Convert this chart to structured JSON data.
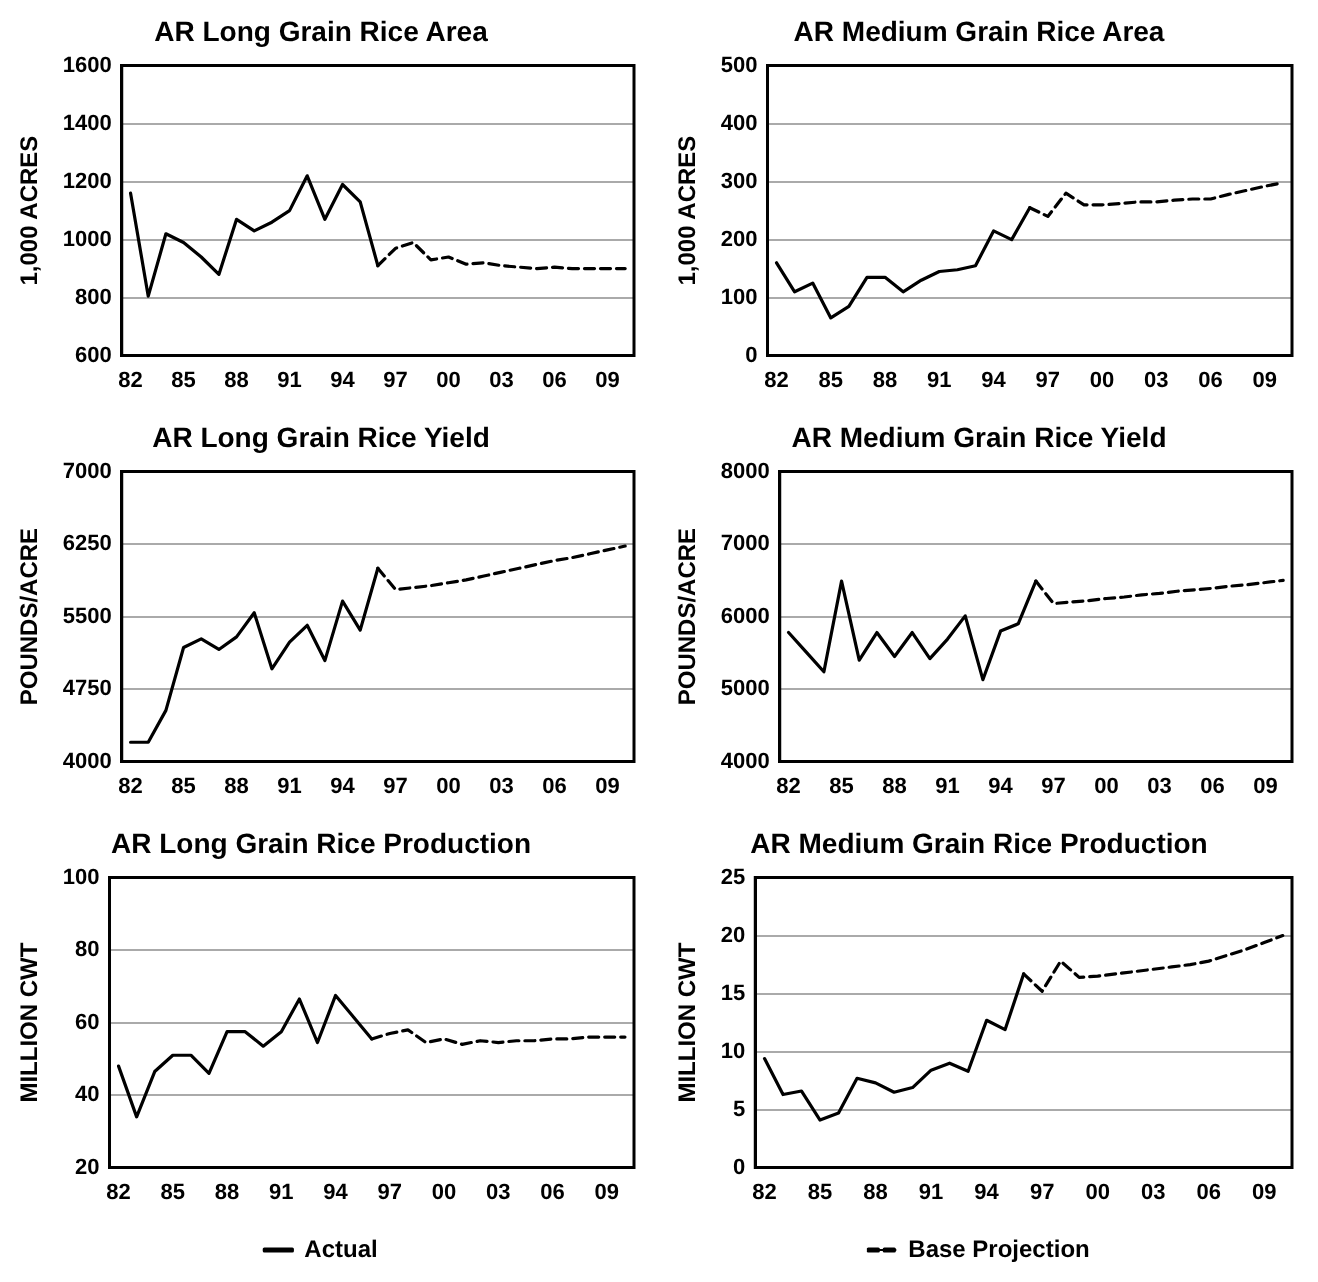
{
  "chart_data": [
    {
      "type": "line",
      "title": "AR Long Grain Rice Area",
      "ylabel": "1,000 ACRES",
      "categories": [
        "82",
        null,
        null,
        "85",
        null,
        null,
        "88",
        null,
        null,
        "91",
        null,
        null,
        "94",
        null,
        null,
        "97",
        null,
        null,
        "00",
        null,
        null,
        "03",
        null,
        null,
        "06",
        null,
        null,
        "09",
        null
      ],
      "ylim": [
        600,
        1600
      ],
      "yticks": [
        600,
        800,
        1000,
        1200,
        1400,
        1600
      ],
      "grid": "y",
      "marker": "none",
      "series": [
        {
          "color": "#000000",
          "line_style": "solid",
          "values": [
            1160,
            805,
            1020,
            990,
            940,
            880,
            1070,
            1030,
            1060,
            1100,
            1220,
            1070,
            1190,
            1130,
            910,
            null,
            null,
            null,
            null,
            null,
            null,
            null,
            null,
            null,
            null,
            null,
            null,
            null,
            null
          ]
        },
        {
          "color": "#000000",
          "line_style": "dashed",
          "values": [
            null,
            null,
            null,
            null,
            null,
            null,
            null,
            null,
            null,
            null,
            null,
            null,
            null,
            null,
            910,
            970,
            990,
            930,
            940,
            915,
            920,
            910,
            905,
            900,
            905,
            900,
            900,
            900,
            900
          ]
        }
      ]
    },
    {
      "type": "line",
      "title": "AR Medium Grain Rice Area",
      "ylabel": "1,000 ACRES",
      "categories": [
        "82",
        null,
        null,
        "85",
        null,
        null,
        "88",
        null,
        null,
        "91",
        null,
        null,
        "94",
        null,
        null,
        "97",
        null,
        null,
        "00",
        null,
        null,
        "03",
        null,
        null,
        "06",
        null,
        null,
        "09",
        null
      ],
      "ylim": [
        0,
        500
      ],
      "yticks": [
        0,
        100,
        200,
        300,
        400,
        500
      ],
      "grid": "y",
      "marker": "none",
      "series": [
        {
          "color": "#000000",
          "line_style": "solid",
          "values": [
            160,
            110,
            125,
            65,
            85,
            135,
            135,
            110,
            130,
            145,
            148,
            155,
            215,
            200,
            255,
            null,
            null,
            null,
            null,
            null,
            null,
            null,
            null,
            null,
            null,
            null,
            null,
            null,
            null
          ]
        },
        {
          "color": "#000000",
          "line_style": "dashed",
          "values": [
            null,
            null,
            null,
            null,
            null,
            null,
            null,
            null,
            null,
            null,
            null,
            null,
            null,
            null,
            255,
            240,
            280,
            260,
            260,
            262,
            265,
            265,
            268,
            270,
            270,
            278,
            285,
            292,
            298
          ]
        }
      ]
    },
    {
      "type": "line",
      "title": "AR Long Grain Rice Yield",
      "ylabel": "POUNDS/ACRE",
      "categories": [
        "82",
        null,
        null,
        "85",
        null,
        null,
        "88",
        null,
        null,
        "91",
        null,
        null,
        "94",
        null,
        null,
        "97",
        null,
        null,
        "00",
        null,
        null,
        "03",
        null,
        null,
        "06",
        null,
        null,
        "09",
        null
      ],
      "ylim": [
        4000,
        7000
      ],
      "yticks": [
        4000,
        4750,
        5500,
        6250,
        7000
      ],
      "grid": "y",
      "marker": "none",
      "series": [
        {
          "color": "#000000",
          "line_style": "solid",
          "values": [
            4200,
            4200,
            4530,
            5180,
            5270,
            5160,
            5290,
            5540,
            4960,
            5235,
            5410,
            5045,
            5660,
            5360,
            6000,
            null,
            null,
            null,
            null,
            null,
            null,
            null,
            null,
            null,
            null,
            null,
            null,
            null,
            null
          ]
        },
        {
          "color": "#000000",
          "line_style": "dashed",
          "values": [
            null,
            null,
            null,
            null,
            null,
            null,
            null,
            null,
            null,
            null,
            null,
            null,
            null,
            null,
            6000,
            5780,
            5800,
            5820,
            5850,
            5880,
            5920,
            5960,
            6000,
            6040,
            6080,
            6110,
            6150,
            6190,
            6230
          ]
        }
      ]
    },
    {
      "type": "line",
      "title": "AR Medium Grain Rice Yield",
      "ylabel": "POUNDS/ACRE",
      "categories": [
        "82",
        null,
        null,
        "85",
        null,
        null,
        "88",
        null,
        null,
        "91",
        null,
        null,
        "94",
        null,
        null,
        "97",
        null,
        null,
        "00",
        null,
        null,
        "03",
        null,
        null,
        "06",
        null,
        null,
        "09",
        null
      ],
      "ylim": [
        4000,
        8000
      ],
      "yticks": [
        4000,
        5000,
        6000,
        7000,
        8000
      ],
      "grid": "y",
      "marker": "none",
      "series": [
        {
          "color": "#000000",
          "line_style": "solid",
          "values": [
            5780,
            5510,
            5240,
            6490,
            5400,
            5780,
            5450,
            5780,
            5420,
            5690,
            6010,
            5130,
            5800,
            5900,
            6490,
            null,
            null,
            null,
            null,
            null,
            null,
            null,
            null,
            null,
            null,
            null,
            null,
            null,
            null
          ]
        },
        {
          "color": "#000000",
          "line_style": "dashed",
          "values": [
            null,
            null,
            null,
            null,
            null,
            null,
            null,
            null,
            null,
            null,
            null,
            null,
            null,
            null,
            6490,
            6180,
            6200,
            6220,
            6250,
            6270,
            6300,
            6320,
            6350,
            6370,
            6390,
            6420,
            6440,
            6470,
            6500
          ]
        }
      ]
    },
    {
      "type": "line",
      "title": "AR Long Grain Rice Production",
      "ylabel": "MILLION CWT",
      "categories": [
        "82",
        null,
        null,
        "85",
        null,
        null,
        "88",
        null,
        null,
        "91",
        null,
        null,
        "94",
        null,
        null,
        "97",
        null,
        null,
        "00",
        null,
        null,
        "03",
        null,
        null,
        "06",
        null,
        null,
        "09",
        null
      ],
      "ylim": [
        20,
        100
      ],
      "yticks": [
        20,
        40,
        60,
        80,
        100
      ],
      "grid": "y",
      "marker": "none",
      "legend": "bottom",
      "series": [
        {
          "name": "Actual",
          "color": "#000000",
          "line_style": "solid",
          "values": [
            48,
            34,
            46.5,
            51,
            51,
            46,
            57.5,
            57.5,
            53.5,
            57.5,
            66.5,
            54.5,
            67.5,
            61.5,
            55.5,
            null,
            null,
            null,
            null,
            null,
            null,
            null,
            null,
            null,
            null,
            null,
            null,
            null,
            null
          ]
        },
        {
          "color": "#000000",
          "line_style": "dashed",
          "values": [
            null,
            null,
            null,
            null,
            null,
            null,
            null,
            null,
            null,
            null,
            null,
            null,
            null,
            null,
            55.5,
            57,
            58,
            54.5,
            55.5,
            54,
            55,
            54.5,
            55,
            55,
            55.5,
            55.5,
            56,
            56,
            56
          ]
        }
      ]
    },
    {
      "type": "line",
      "title": "AR Medium Grain Rice Production",
      "ylabel": "MILLION CWT",
      "categories": [
        "82",
        null,
        null,
        "85",
        null,
        null,
        "88",
        null,
        null,
        "91",
        null,
        null,
        "94",
        null,
        null,
        "97",
        null,
        null,
        "00",
        null,
        null,
        "03",
        null,
        null,
        "06",
        null,
        null,
        "09",
        null
      ],
      "ylim": [
        0,
        25
      ],
      "yticks": [
        0,
        5,
        10,
        15,
        20,
        25
      ],
      "grid": "y",
      "marker": "none",
      "legend": "bottom",
      "series": [
        {
          "color": "#000000",
          "line_style": "solid",
          "values": [
            9.4,
            6.3,
            6.6,
            4.1,
            4.7,
            7.7,
            7.3,
            6.5,
            6.9,
            8.4,
            9.0,
            8.3,
            12.7,
            11.9,
            16.7,
            null,
            null,
            null,
            null,
            null,
            null,
            null,
            null,
            null,
            null,
            null,
            null,
            null,
            null
          ]
        },
        {
          "name": "Base Projection",
          "color": "#000000",
          "line_style": "dashed",
          "values": [
            null,
            null,
            null,
            null,
            null,
            null,
            null,
            null,
            null,
            null,
            null,
            null,
            null,
            null,
            16.7,
            15.2,
            17.8,
            16.4,
            16.5,
            16.7,
            16.9,
            17.1,
            17.3,
            17.5,
            17.8,
            18.3,
            18.8,
            19.4,
            20.0
          ]
        }
      ]
    }
  ]
}
